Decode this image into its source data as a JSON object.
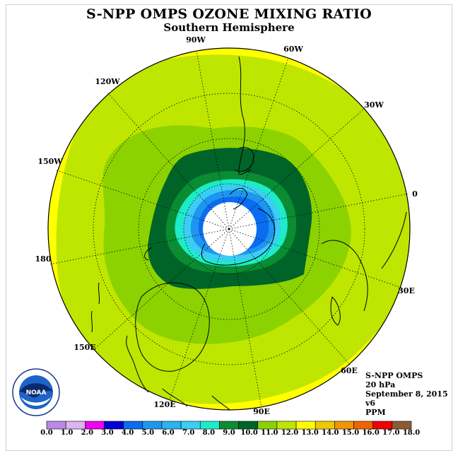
{
  "title": "S-NPP OMPS OZONE MIXING RATIO",
  "subtitle": "Southern Hemisphere",
  "longitude_labels": [
    "90W",
    "60W",
    "30W",
    "0",
    "30E",
    "60E",
    "90E",
    "120E",
    "150E",
    "180",
    "150W",
    "120W"
  ],
  "info": {
    "instrument": "S-NPP OMPS",
    "pressure": "20 hPa",
    "date": "September 8, 2015",
    "version": "v6",
    "units": "PPM"
  },
  "legend": {
    "labels": [
      "0.0",
      "1.0",
      "2.0",
      "3.0",
      "4.0",
      "5.0",
      "6.0",
      "7.0",
      "8.0",
      "9.0",
      "10.0",
      "11.0",
      "12.0",
      "13.0",
      "14.0",
      "15.0",
      "16.0",
      "17.0",
      "18.0"
    ],
    "colors": [
      "#b889e8",
      "#dcb4f0",
      "#f000f0",
      "#0000d8",
      "#0a6cf0",
      "#1e96f0",
      "#28b4f0",
      "#3ccdf5",
      "#1eebc8",
      "#0a8c32",
      "#006428",
      "#8cd200",
      "#bee600",
      "#ffff00",
      "#f0c800",
      "#f09600",
      "#f06400",
      "#f00000",
      "#8c5a32"
    ]
  },
  "logo": {
    "text": "NOAA",
    "icon": "noaa-logo-icon"
  }
}
